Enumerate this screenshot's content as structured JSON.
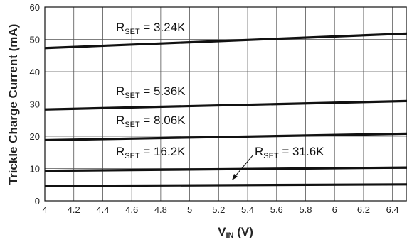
{
  "chart_data": {
    "type": "line",
    "title": "",
    "xlabel": "V",
    "xlabel_sub": "IN",
    "xlabel_unit": " (V)",
    "ylabel": "Trickle Charge Current (mA)",
    "xlim": [
      4,
      6.5
    ],
    "ylim": [
      0,
      60
    ],
    "x_ticks": [
      4,
      4.2,
      4.4,
      4.6,
      4.8,
      5,
      5.2,
      5.4,
      5.6,
      5.8,
      6,
      6.2,
      6.4
    ],
    "x_tick_labels": [
      "4",
      "4.2",
      "4.4",
      "4.6",
      "4.8",
      "5",
      "5.2",
      "5.4",
      "5.6",
      "5.8",
      "6",
      "6.2",
      "6.4"
    ],
    "y_ticks": [
      0,
      10,
      20,
      30,
      40,
      50,
      60
    ],
    "y_tick_labels": [
      "0",
      "10",
      "20",
      "30",
      "40",
      "50",
      "60"
    ],
    "grid": true,
    "line_color": "#111111",
    "series": [
      {
        "label_main": "R",
        "label_sub": "SET",
        "label_value": " = 3.24K",
        "x": [
          4,
          6.5
        ],
        "y": [
          47.3,
          51.8
        ]
      },
      {
        "label_main": "R",
        "label_sub": "SET",
        "label_value": " = 5.36K",
        "x": [
          4,
          6.5
        ],
        "y": [
          28.3,
          30.9
        ]
      },
      {
        "label_main": "R",
        "label_sub": "SET",
        "label_value": " = 8.06K",
        "x": [
          4,
          6.5
        ],
        "y": [
          18.8,
          20.8
        ]
      },
      {
        "label_main": "R",
        "label_sub": "SET",
        "label_value": " = 16.2K",
        "x": [
          4,
          6.5
        ],
        "y": [
          9.3,
          10.3
        ]
      },
      {
        "label_main": "R",
        "label_sub": "SET",
        "label_value": " = 31.6K",
        "x": [
          4,
          6.5
        ],
        "y": [
          4.6,
          5.1
        ]
      }
    ]
  }
}
